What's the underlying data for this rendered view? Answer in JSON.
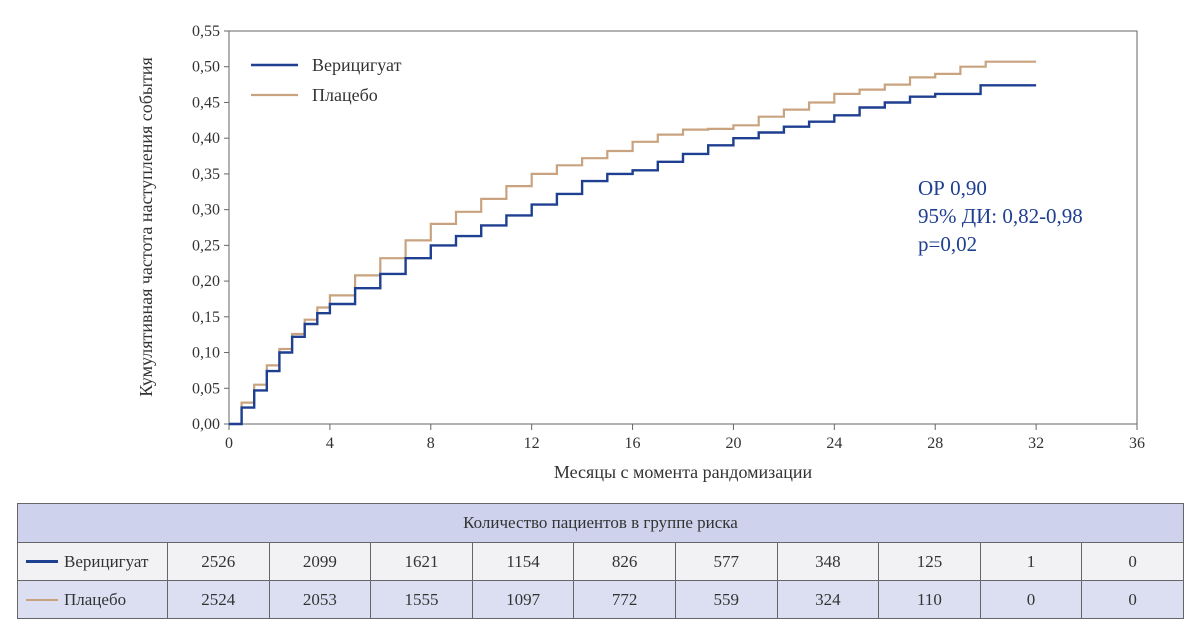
{
  "chart_data": {
    "type": "line",
    "xlabel": "Месяцы с момента рандомизации",
    "ylabel": "Кумулятивная частота наступления события",
    "xlim": [
      0,
      36
    ],
    "ylim": [
      0,
      0.55
    ],
    "x_ticks": [
      "0",
      "4",
      "8",
      "12",
      "16",
      "20",
      "24",
      "28",
      "32",
      "36"
    ],
    "y_ticks": [
      "0,00",
      "0,05",
      "0,10",
      "0,15",
      "0,20",
      "0,25",
      "0,30",
      "0,35",
      "0,40",
      "0,45",
      "0,50",
      "0,55"
    ],
    "grid": false,
    "legend_position": "top-left",
    "series": [
      {
        "name": "Верицигуат",
        "color": "#1f3f91",
        "x": [
          0,
          0.5,
          1,
          1.5,
          2,
          2.5,
          3,
          3.5,
          4,
          5,
          6,
          7,
          8,
          9,
          10,
          11,
          12,
          13,
          14,
          15,
          16,
          17,
          18,
          19,
          20,
          21,
          22,
          23,
          24,
          25,
          26,
          27,
          28,
          29,
          29.8,
          29.8,
          32
        ],
        "y": [
          0,
          0.023,
          0.047,
          0.074,
          0.1,
          0.122,
          0.14,
          0.155,
          0.168,
          0.19,
          0.21,
          0.232,
          0.25,
          0.263,
          0.278,
          0.292,
          0.307,
          0.322,
          0.34,
          0.35,
          0.355,
          0.367,
          0.378,
          0.39,
          0.4,
          0.408,
          0.416,
          0.423,
          0.432,
          0.443,
          0.45,
          0.458,
          0.462,
          0.462,
          0.462,
          0.474,
          0.474
        ]
      },
      {
        "name": "Плацебо",
        "color": "#c9a37f",
        "x": [
          0,
          0.5,
          1,
          1.5,
          2,
          2.5,
          3,
          3.5,
          4,
          5,
          6,
          7,
          8,
          9,
          10,
          11,
          12,
          13,
          14,
          15,
          16,
          17,
          18,
          19,
          20,
          21,
          22,
          23,
          24,
          25,
          26,
          27,
          28,
          29,
          30,
          31,
          32
        ],
        "y": [
          0,
          0.03,
          0.055,
          0.082,
          0.105,
          0.126,
          0.146,
          0.163,
          0.18,
          0.208,
          0.232,
          0.257,
          0.28,
          0.297,
          0.315,
          0.333,
          0.35,
          0.362,
          0.372,
          0.382,
          0.395,
          0.405,
          0.412,
          0.413,
          0.418,
          0.43,
          0.44,
          0.45,
          0.462,
          0.468,
          0.475,
          0.485,
          0.49,
          0.5,
          0.507,
          0.507,
          0.507
        ]
      }
    ],
    "annotations": [
      "ОР 0,90",
      "95% ДИ: 0,82-0,98",
      "p=0,02"
    ]
  },
  "risk_table": {
    "header": "Количество пациентов в группе риска",
    "rows": [
      {
        "label": "Верицигуат",
        "color": "#1f3f91",
        "values": [
          "2526",
          "2099",
          "1621",
          "1154",
          "826",
          "577",
          "348",
          "125",
          "1",
          "0"
        ]
      },
      {
        "label": "Плацебо",
        "color": "#c9a37f",
        "values": [
          "2524",
          "2053",
          "1555",
          "1097",
          "772",
          "559",
          "324",
          "110",
          "0",
          "0"
        ]
      }
    ]
  }
}
